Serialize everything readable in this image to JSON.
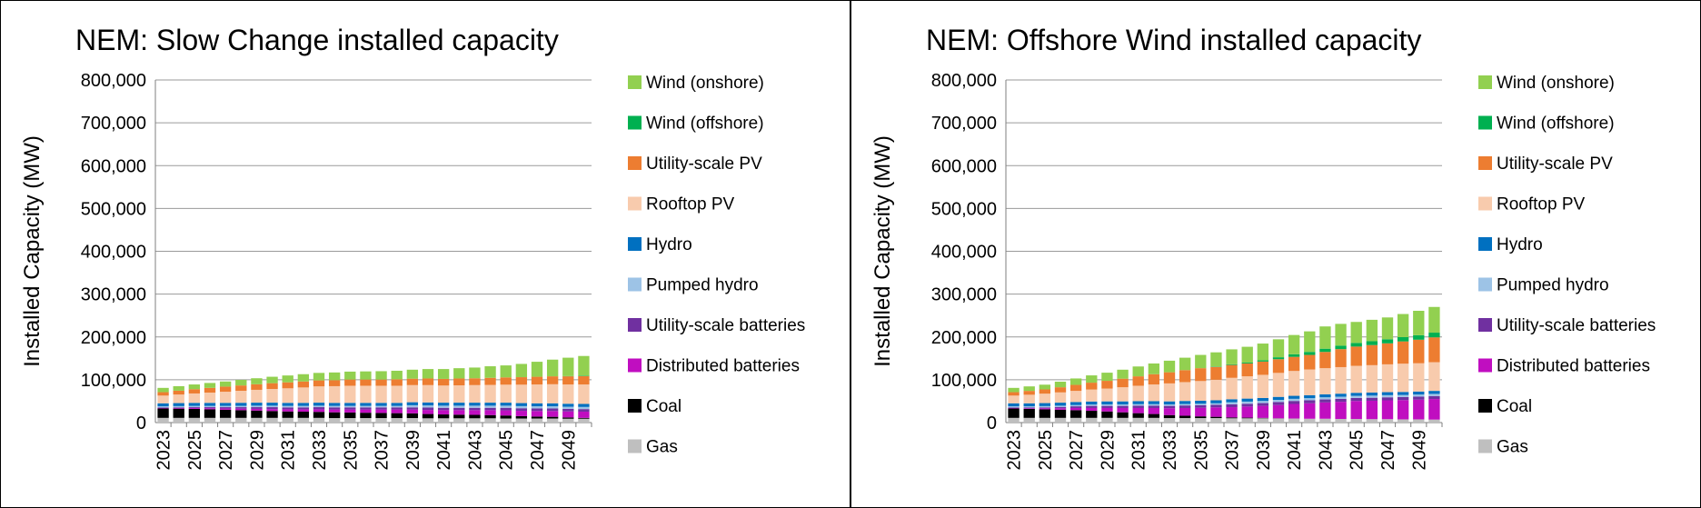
{
  "colors": {
    "Gas": "#bfbfbf",
    "Coal": "#000000",
    "Distributed batteries": "#c00ec0",
    "Utility-scale batteries": "#7030a0",
    "Pumped hydro": "#9dc3e6",
    "Hydro": "#0070c0",
    "Rooftop PV": "#f8cbad",
    "Utility-scale PV": "#ed7d31",
    "Wind (offshore)": "#00b050",
    "Wind (onshore)": "#92d050"
  },
  "legend_order": [
    "Wind (onshore)",
    "Wind (offshore)",
    "Utility-scale PV",
    "Rooftop PV",
    "Hydro",
    "Pumped hydro",
    "Utility-scale batteries",
    "Distributed batteries",
    "Coal",
    "Gas"
  ],
  "chart_data": [
    {
      "type": "bar",
      "stacked": true,
      "title": "NEM: Slow Change installed capacity",
      "ylabel": "Installed Capacity (MW)",
      "ylim": [
        0,
        800000
      ],
      "yticks": [
        "0",
        "100,000",
        "200,000",
        "300,000",
        "400,000",
        "500,000",
        "600,000",
        "700,000",
        "800,000"
      ],
      "xtick_labels": [
        "2023",
        "2025",
        "2027",
        "2029",
        "2031",
        "2033",
        "2035",
        "2037",
        "2039",
        "2041",
        "2043",
        "2045",
        "2047",
        "2049"
      ],
      "legend_position": "right",
      "grid": true,
      "categories": [
        "2023",
        "2024",
        "2025",
        "2026",
        "2027",
        "2028",
        "2029",
        "2030",
        "2031",
        "2032",
        "2033",
        "2034",
        "2035",
        "2036",
        "2037",
        "2038",
        "2039",
        "2040",
        "2041",
        "2042",
        "2043",
        "2044",
        "2045",
        "2046",
        "2047",
        "2048",
        "2049",
        "2050"
      ],
      "series": [
        {
          "name": "Gas",
          "values": [
            11000,
            11000,
            11000,
            11000,
            11000,
            11000,
            11000,
            11000,
            11000,
            11000,
            11000,
            10500,
            10500,
            10500,
            10500,
            10500,
            10500,
            10000,
            10000,
            10000,
            10000,
            10000,
            9500,
            9500,
            9500,
            9500,
            9000,
            9000
          ]
        },
        {
          "name": "Coal",
          "values": [
            22000,
            21500,
            21000,
            20000,
            19000,
            18000,
            17000,
            16000,
            15000,
            14500,
            14000,
            13500,
            13000,
            12500,
            12000,
            11500,
            11000,
            10000,
            9000,
            8500,
            8000,
            7500,
            7000,
            5500,
            4500,
            4000,
            3000,
            2000
          ]
        },
        {
          "name": "Distributed batteries",
          "values": [
            1000,
            1500,
            2000,
            2500,
            3000,
            3500,
            4000,
            4500,
            5000,
            5500,
            6000,
            6500,
            7000,
            7500,
            8000,
            8500,
            9000,
            9500,
            10000,
            10500,
            11000,
            11500,
            12000,
            12500,
            13000,
            13500,
            14000,
            14500
          ]
        },
        {
          "name": "Utility-scale batteries",
          "values": [
            1000,
            1500,
            2000,
            2500,
            3000,
            3500,
            4000,
            4500,
            4500,
            4500,
            5000,
            5000,
            5000,
            5000,
            5000,
            5000,
            5000,
            5500,
            5500,
            5500,
            5500,
            5500,
            6000,
            6000,
            6000,
            6000,
            6000,
            6000
          ]
        },
        {
          "name": "Pumped hydro",
          "values": [
            3000,
            3000,
            3000,
            3000,
            3000,
            3200,
            3500,
            3500,
            3500,
            3500,
            3500,
            3500,
            3500,
            3500,
            3500,
            3500,
            5000,
            5000,
            5000,
            5000,
            5000,
            5000,
            5000,
            5000,
            5000,
            5000,
            5000,
            5000
          ]
        },
        {
          "name": "Hydro",
          "values": [
            7000,
            7000,
            7000,
            7000,
            7000,
            7000,
            7000,
            7000,
            7000,
            7000,
            7000,
            7000,
            7000,
            7000,
            7000,
            7000,
            7000,
            7000,
            7000,
            7000,
            7000,
            7000,
            7000,
            7000,
            7000,
            7000,
            7000,
            7000
          ]
        },
        {
          "name": "Rooftop PV",
          "values": [
            18000,
            20000,
            22000,
            24000,
            26000,
            28000,
            30000,
            32000,
            34000,
            36000,
            38000,
            39000,
            40000,
            40000,
            40000,
            40000,
            40000,
            40500,
            40000,
            40500,
            41000,
            41500,
            42000,
            43000,
            44000,
            44500,
            45000,
            45500
          ]
        },
        {
          "name": "Utility-scale PV",
          "values": [
            8000,
            9000,
            10000,
            11000,
            12000,
            12500,
            13000,
            13500,
            14000,
            14000,
            14000,
            14000,
            14500,
            14500,
            14500,
            15000,
            15000,
            15500,
            15500,
            16000,
            16000,
            16500,
            17000,
            17500,
            18000,
            18500,
            19000,
            19500
          ]
        },
        {
          "name": "Wind (offshore)",
          "values": [
            0,
            0,
            0,
            0,
            0,
            0,
            0,
            0,
            0,
            0,
            0,
            0,
            0,
            0,
            0,
            0,
            0,
            0,
            0,
            0,
            0,
            0,
            0,
            0,
            0,
            0,
            500,
            1000
          ]
        },
        {
          "name": "Wind (onshore)",
          "values": [
            10000,
            10500,
            11000,
            11500,
            12000,
            13000,
            14000,
            15000,
            16000,
            17000,
            17500,
            18000,
            18500,
            19000,
            19500,
            20000,
            21000,
            22000,
            23000,
            24000,
            25000,
            27000,
            28000,
            31000,
            35000,
            39000,
            43000,
            46000
          ]
        }
      ]
    },
    {
      "type": "bar",
      "stacked": true,
      "title": "NEM: Offshore Wind installed capacity",
      "ylabel": "Installed Capacity (MW)",
      "ylim": [
        0,
        800000
      ],
      "yticks": [
        "0",
        "100,000",
        "200,000",
        "300,000",
        "400,000",
        "500,000",
        "600,000",
        "700,000",
        "800,000"
      ],
      "xtick_labels": [
        "2023",
        "2025",
        "2027",
        "2029",
        "2031",
        "2033",
        "2035",
        "2037",
        "2039",
        "2041",
        "2043",
        "2045",
        "2047",
        "2049"
      ],
      "legend_position": "right",
      "grid": true,
      "categories": [
        "2023",
        "2024",
        "2025",
        "2026",
        "2027",
        "2028",
        "2029",
        "2030",
        "2031",
        "2032",
        "2033",
        "2034",
        "2035",
        "2036",
        "2037",
        "2038",
        "2039",
        "2040",
        "2041",
        "2042",
        "2043",
        "2044",
        "2045",
        "2046",
        "2047",
        "2048",
        "2049",
        "2050"
      ],
      "series": [
        {
          "name": "Gas",
          "values": [
            11000,
            11000,
            11000,
            11000,
            11000,
            11000,
            11000,
            11000,
            11000,
            11000,
            10500,
            10500,
            10500,
            10500,
            10000,
            10000,
            10000,
            9500,
            9500,
            9000,
            9000,
            8500,
            8500,
            8000,
            8000,
            7500,
            7500,
            7000
          ]
        },
        {
          "name": "Coal",
          "values": [
            22000,
            21000,
            20000,
            19000,
            18000,
            16500,
            15000,
            13000,
            11000,
            9000,
            7000,
            5500,
            4000,
            3000,
            2000,
            1500,
            1000,
            500,
            0,
            0,
            0,
            0,
            0,
            0,
            0,
            0,
            0,
            0
          ]
        },
        {
          "name": "Distributed batteries",
          "values": [
            1000,
            1500,
            2500,
            3500,
            5000,
            6500,
            8000,
            10000,
            12000,
            14000,
            16000,
            18000,
            20000,
            22000,
            24000,
            26000,
            28000,
            31000,
            34000,
            36000,
            38000,
            40000,
            42000,
            43000,
            44000,
            45000,
            46000,
            48000
          ]
        },
        {
          "name": "Utility-scale batteries",
          "values": [
            1000,
            1500,
            2000,
            3000,
            4000,
            5000,
            5000,
            5000,
            5500,
            5500,
            5500,
            6000,
            6000,
            6000,
            6500,
            6500,
            6500,
            7000,
            7000,
            7000,
            7000,
            7000,
            7000,
            7000,
            7000,
            7000,
            7000,
            7000
          ]
        },
        {
          "name": "Pumped hydro",
          "values": [
            3000,
            3000,
            3000,
            3000,
            3000,
            3200,
            3500,
            3500,
            3500,
            3500,
            3500,
            3500,
            3500,
            3500,
            5000,
            5000,
            5000,
            5000,
            5000,
            5000,
            5000,
            5000,
            5000,
            5000,
            5000,
            5000,
            5000,
            5000
          ]
        },
        {
          "name": "Hydro",
          "values": [
            7000,
            7000,
            7000,
            7000,
            7000,
            7000,
            7000,
            7000,
            7000,
            7000,
            7000,
            7000,
            7000,
            7000,
            7000,
            7000,
            7000,
            7000,
            7000,
            7000,
            7000,
            7000,
            7000,
            7000,
            7000,
            7000,
            7000,
            7000
          ]
        },
        {
          "name": "Rooftop PV",
          "values": [
            18000,
            20000,
            22000,
            24000,
            26000,
            28000,
            30000,
            33000,
            36000,
            39000,
            42000,
            44000,
            46000,
            48000,
            50000,
            52000,
            54000,
            56000,
            58000,
            60000,
            61000,
            62000,
            63000,
            64000,
            65000,
            66000,
            66000,
            67000
          ]
        },
        {
          "name": "Utility-scale PV",
          "values": [
            8000,
            9000,
            10000,
            12000,
            14000,
            16000,
            18000,
            20000,
            22000,
            24000,
            26000,
            28000,
            30000,
            30000,
            30000,
            30000,
            31000,
            32000,
            33000,
            34000,
            38000,
            42000,
            45000,
            47000,
            49000,
            52000,
            55000,
            58000
          ]
        },
        {
          "name": "Wind (offshore)",
          "values": [
            0,
            0,
            0,
            0,
            0,
            0,
            0,
            0,
            0,
            0,
            0,
            0,
            0,
            1000,
            1500,
            2000,
            3000,
            4500,
            6000,
            7000,
            7500,
            8000,
            8500,
            9000,
            9500,
            10000,
            10500,
            11000
          ]
        },
        {
          "name": "Wind (onshore)",
          "values": [
            10000,
            10500,
            11000,
            13000,
            15000,
            17000,
            19000,
            21000,
            23000,
            25000,
            27000,
            29000,
            31000,
            33000,
            35000,
            37000,
            39000,
            42000,
            45000,
            48000,
            52000,
            51000,
            49000,
            50000,
            51000,
            54000,
            57000,
            60000
          ]
        }
      ]
    }
  ]
}
